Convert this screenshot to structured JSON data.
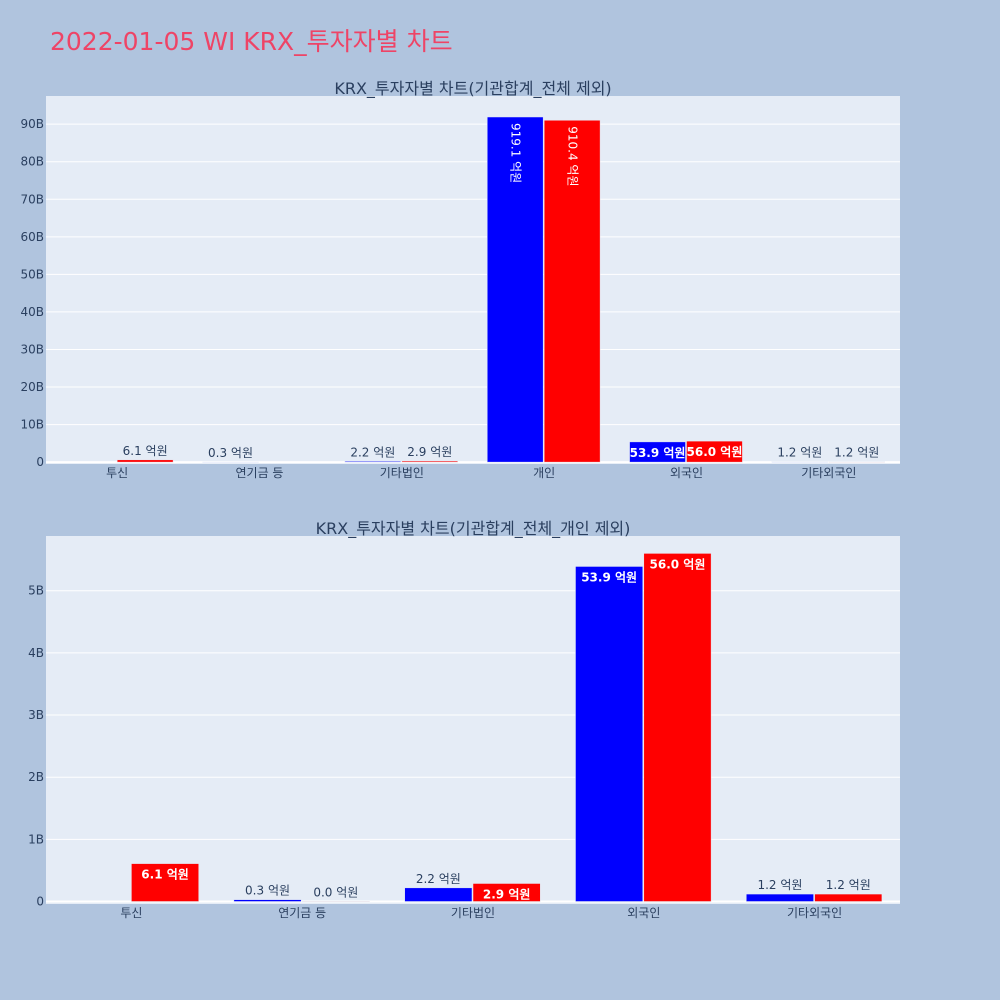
{
  "page_title": "2022-01-05 WI KRX_투자자별 차트",
  "colors": {
    "background": "#b0c4de",
    "plot_background": "#e5ecf6",
    "series_a": "#0000ff",
    "series_b": "#ff0000",
    "title": "#ee4466",
    "text": "#2a3f5f"
  },
  "chart_data": [
    {
      "type": "bar",
      "title": "KRX_투자자별 차트(기관합계_전체 제외)",
      "categories": [
        "투신",
        "연기금 등",
        "기타법인",
        "개인",
        "외국인",
        "기타외국인"
      ],
      "series": [
        {
          "color": "#0000ff",
          "values": [
            0,
            0.03,
            0.22,
            91.91,
            5.39,
            0.12
          ],
          "labels": [
            "",
            "0.3 억원",
            "2.2 억원",
            "919.1 억원",
            "53.9 억원",
            "1.2 억원"
          ]
        },
        {
          "color": "#ff0000",
          "values": [
            0.61,
            0,
            0.29,
            91.04,
            5.6,
            0.12
          ],
          "labels": [
            "6.1 억원",
            "",
            "2.9 억원",
            "910.4 억원",
            "56.0 억원",
            "1.2 억원"
          ]
        }
      ],
      "yticks": [
        "0",
        "10B",
        "20B",
        "30B",
        "40B",
        "50B",
        "60B",
        "70B",
        "80B",
        "90B"
      ],
      "ytick_values": [
        0,
        10,
        20,
        30,
        40,
        50,
        60,
        70,
        80,
        90
      ],
      "ylim": [
        -0.5,
        97.5
      ],
      "grid": true
    },
    {
      "type": "bar",
      "title": "KRX_투자자별 차트(기관합계_전체_개인 제외)",
      "categories": [
        "투신",
        "연기금 등",
        "기타법인",
        "외국인",
        "기타외국인"
      ],
      "series": [
        {
          "color": "#0000ff",
          "values": [
            0,
            0.03,
            0.22,
            5.39,
            0.12
          ],
          "labels": [
            "",
            "0.3 억원",
            "2.2 억원",
            "53.9 억원",
            "1.2 억원"
          ]
        },
        {
          "color": "#ff0000",
          "values": [
            0.61,
            0.003,
            0.29,
            5.6,
            0.12
          ],
          "labels": [
            "6.1 억원",
            "0.0 억원",
            "2.9 억원",
            "56.0 억원",
            "1.2 억원"
          ]
        }
      ],
      "yticks": [
        "0",
        "1B",
        "2B",
        "3B",
        "4B",
        "5B"
      ],
      "ytick_values": [
        0,
        1,
        2,
        3,
        4,
        5
      ],
      "ylim": [
        -0.04,
        5.88
      ],
      "grid": true
    }
  ]
}
